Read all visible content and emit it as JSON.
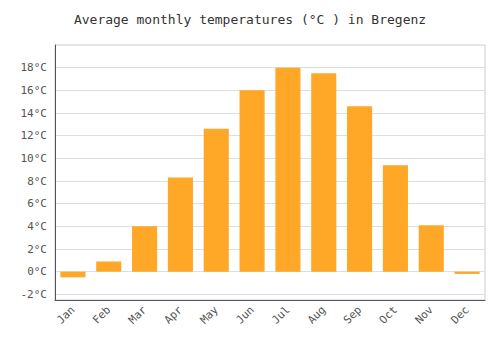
{
  "chart_data": {
    "type": "bar",
    "title": "Average monthly temperatures (°C ) in Bregenz",
    "categories": [
      "Jan",
      "Feb",
      "Mar",
      "Apr",
      "May",
      "Jun",
      "Jul",
      "Aug",
      "Sep",
      "Oct",
      "Nov",
      "Dec"
    ],
    "values": [
      -0.5,
      0.9,
      4.0,
      8.3,
      12.6,
      16.0,
      18.0,
      17.5,
      14.6,
      9.4,
      4.1,
      -0.2
    ],
    "color": "#FFA726",
    "ylim": [
      -2.5,
      20
    ],
    "yticks": [
      {
        "value": -2,
        "label": "-2°C"
      },
      {
        "value": 0,
        "label": "0°C"
      },
      {
        "value": 2,
        "label": "2°C"
      },
      {
        "value": 4,
        "label": "4°C"
      },
      {
        "value": 6,
        "label": "6°C"
      },
      {
        "value": 8,
        "label": "8°C"
      },
      {
        "value": 10,
        "label": "10°C"
      },
      {
        "value": 12,
        "label": "12°C"
      },
      {
        "value": 14,
        "label": "14°C"
      },
      {
        "value": 16,
        "label": "16°C"
      },
      {
        "value": 18,
        "label": "18°C"
      }
    ],
    "grid": true
  }
}
